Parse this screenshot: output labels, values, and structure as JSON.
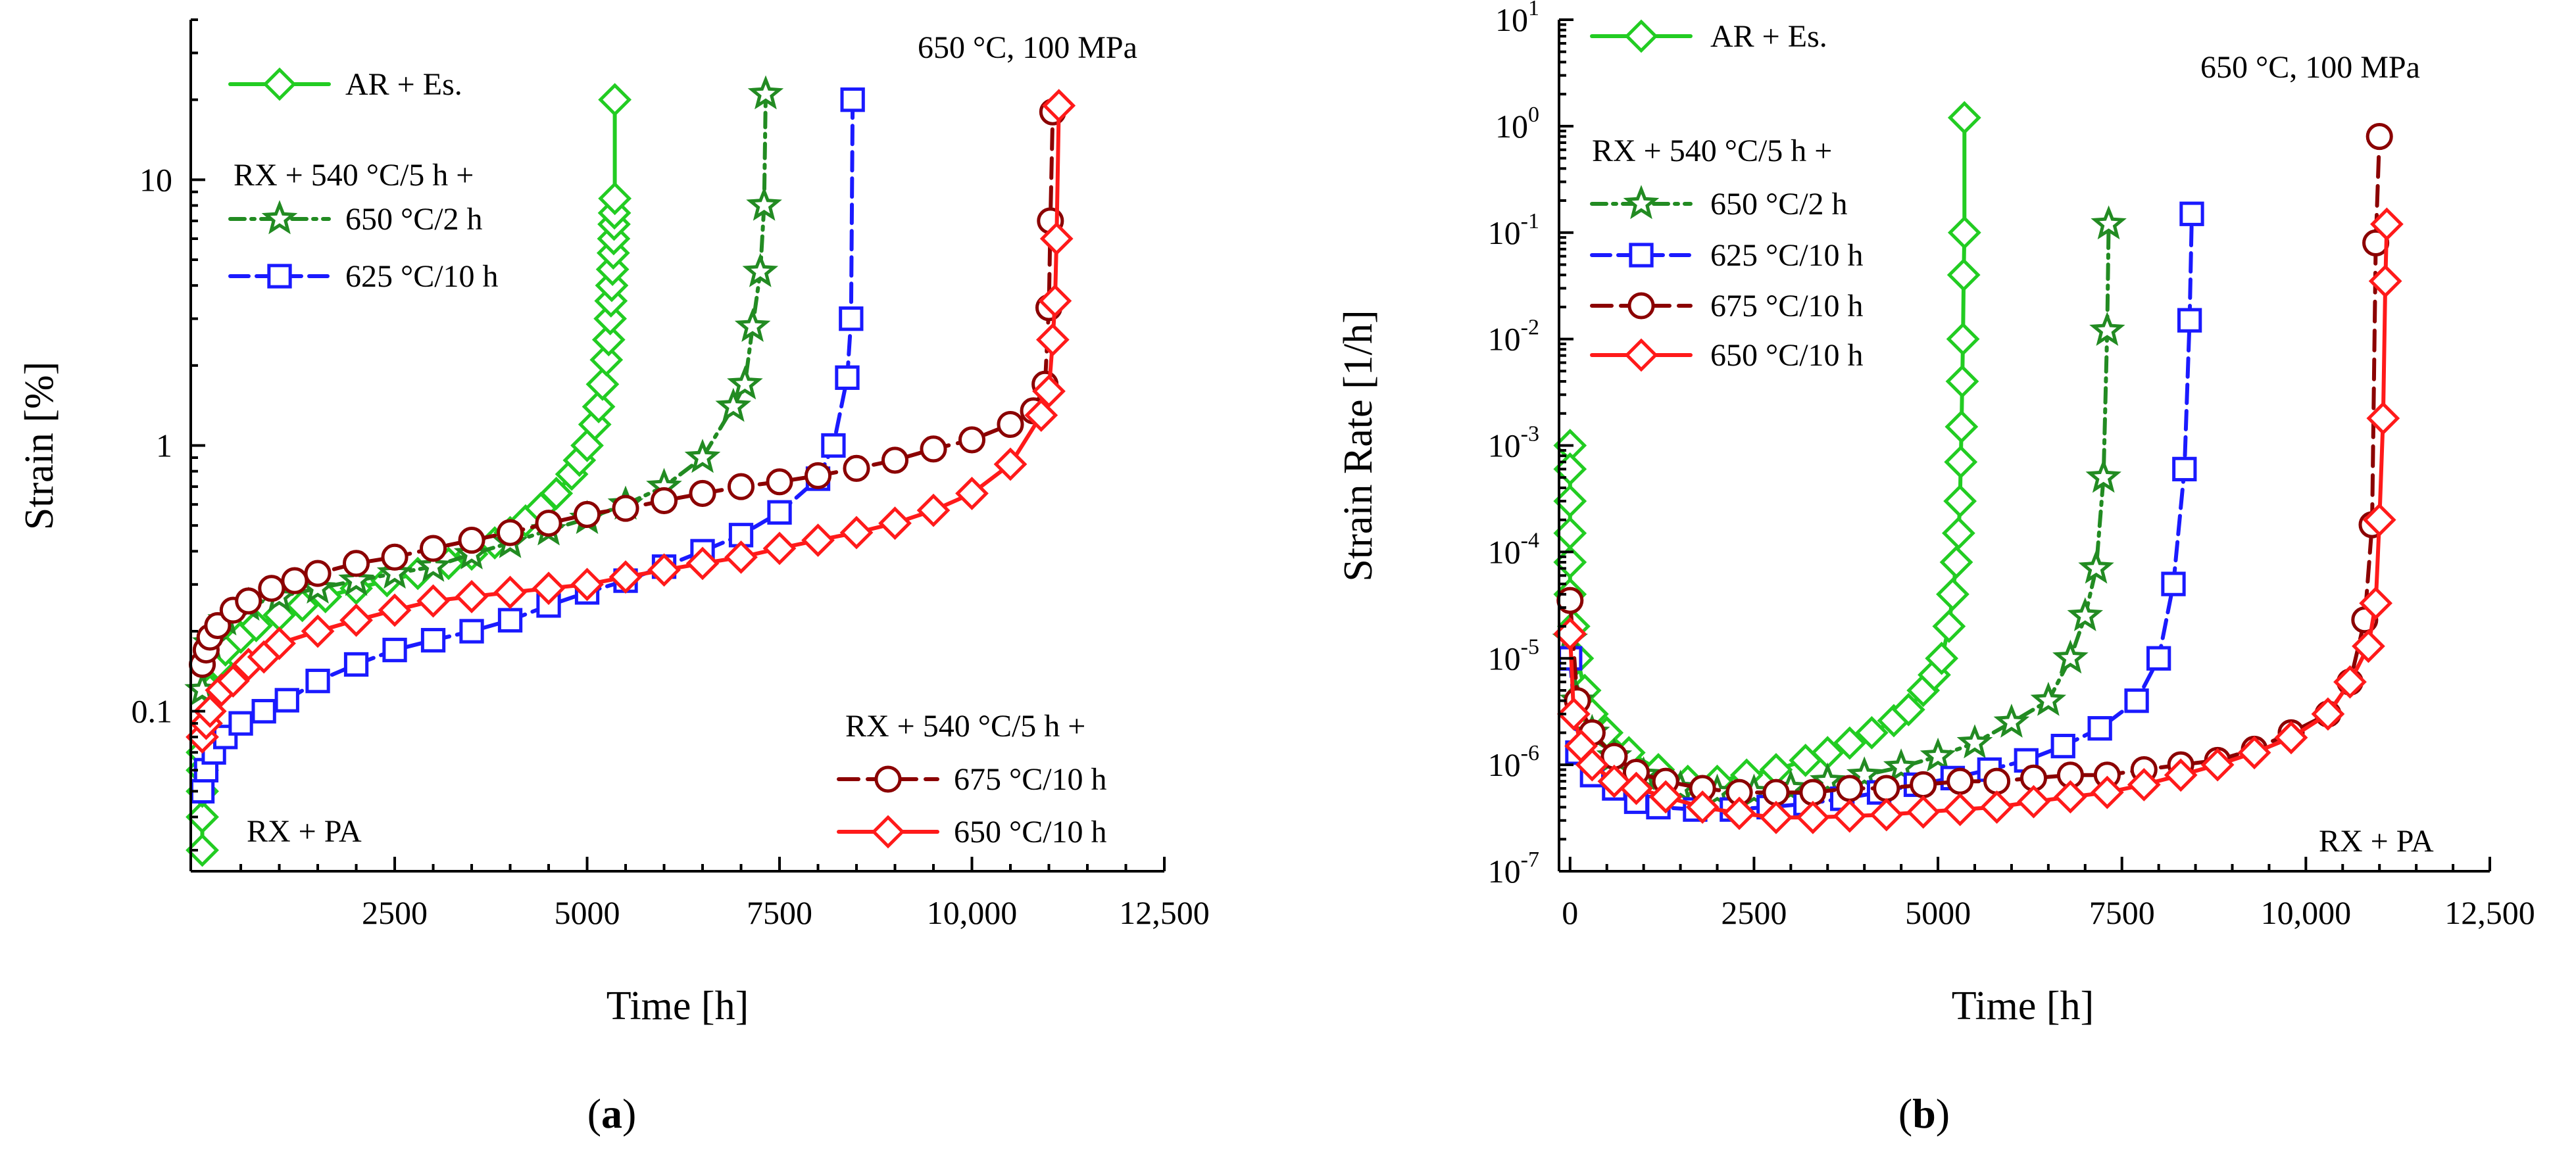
{
  "colors": {
    "ar": "#22cc22",
    "ar_marker": "#2ecc2e",
    "rx650_2": "#228b22",
    "rx625_10": "#1a1aff",
    "rx675_10": "#8b0000",
    "rx650_10": "#ff1a1a"
  },
  "chart_data": [
    {
      "type": "line",
      "panel_label_open": "(",
      "panel_label": "a",
      "panel_label_close": ")",
      "title": "",
      "xlabel": "Time [h]",
      "ylabel": "Strain [%]",
      "xlim": [
        0,
        12500
      ],
      "ylim": [
        0.025,
        40
      ],
      "yscale": "log",
      "x_ticks": [
        "2500",
        "5000",
        "7500",
        "10,000",
        "12,500"
      ],
      "x_tick_values": [
        2500,
        5000,
        7500,
        10000,
        12500
      ],
      "y_ticks": [
        "0.1",
        "1",
        "10"
      ],
      "y_tick_values": [
        0.1,
        1,
        10
      ],
      "annotations": {
        "condition": "650 °C, 100 MPa",
        "base": "RX + PA",
        "group1": "RX + 540 °C/5 h +",
        "group2": "RX + 540 °C/5 h +"
      },
      "legend": {
        "ar": "AR + Es.",
        "rx650_2": "650 °C/2 h",
        "rx625_10": "625 °C/10 h",
        "rx675_10": "675 °C/10 h",
        "rx650_10": "650 °C/10 h"
      },
      "series": [
        {
          "key": "ar",
          "name": "AR + Es.",
          "marker": "diamond",
          "dash": "",
          "x": [
            0,
            0,
            0,
            0,
            0,
            50,
            100,
            200,
            300,
            500,
            700,
            1000,
            1300,
            1600,
            2000,
            2400,
            2800,
            3200,
            3500,
            3800,
            4000,
            4200,
            4400,
            4600,
            4800,
            4900,
            5000,
            5100,
            5150,
            5200,
            5250,
            5280,
            5300,
            5310,
            5320,
            5330,
            5340,
            5345,
            5350,
            5355,
            5360,
            5360
          ],
          "y": [
            0.03,
            0.04,
            0.05,
            0.06,
            0.07,
            0.09,
            0.12,
            0.15,
            0.17,
            0.19,
            0.21,
            0.23,
            0.25,
            0.27,
            0.29,
            0.31,
            0.33,
            0.36,
            0.39,
            0.43,
            0.47,
            0.52,
            0.58,
            0.66,
            0.78,
            0.88,
            1.0,
            1.2,
            1.4,
            1.7,
            2.1,
            2.5,
            3.0,
            3.5,
            4.0,
            4.6,
            5.3,
            6.0,
            6.8,
            7.5,
            8.5,
            20
          ]
        },
        {
          "key": "rx650_2",
          "name": "650 °C/2 h",
          "marker": "star",
          "dash": "22,10,5,10",
          "x": [
            0,
            100,
            300,
            600,
            1000,
            1500,
            2000,
            2500,
            3000,
            3500,
            4000,
            4500,
            5000,
            5500,
            6000,
            6500,
            6900,
            7050,
            7150,
            7250,
            7300,
            7320
          ],
          "y": [
            0.12,
            0.18,
            0.22,
            0.25,
            0.27,
            0.29,
            0.31,
            0.33,
            0.35,
            0.39,
            0.43,
            0.48,
            0.53,
            0.6,
            0.7,
            0.9,
            1.4,
            1.7,
            2.8,
            4.5,
            8,
            21
          ]
        },
        {
          "key": "rx625_10",
          "name": "625 °C/10 h",
          "marker": "square",
          "dash": "28,12",
          "x": [
            0,
            50,
            150,
            300,
            500,
            800,
            1100,
            1500,
            2000,
            2500,
            3000,
            3500,
            4000,
            4500,
            5000,
            5500,
            6000,
            6500,
            7000,
            7500,
            8000,
            8200,
            8380,
            8430,
            8450
          ],
          "y": [
            0.05,
            0.06,
            0.07,
            0.08,
            0.09,
            0.1,
            0.11,
            0.13,
            0.15,
            0.17,
            0.185,
            0.2,
            0.22,
            0.25,
            0.28,
            0.31,
            0.35,
            0.4,
            0.46,
            0.56,
            0.75,
            1.0,
            1.8,
            3.0,
            20
          ]
        },
        {
          "key": "rx675_10",
          "name": "675 °C/10 h",
          "marker": "circle",
          "dash": "30,14",
          "x": [
            0,
            50,
            100,
            200,
            400,
            600,
            900,
            1200,
            1500,
            2000,
            2500,
            3000,
            3500,
            4000,
            4500,
            5000,
            5500,
            6000,
            6500,
            7000,
            7500,
            8000,
            8500,
            9000,
            9500,
            10000,
            10500,
            10800,
            10950,
            11000,
            11020,
            11050
          ],
          "y": [
            0.15,
            0.17,
            0.19,
            0.21,
            0.24,
            0.26,
            0.29,
            0.31,
            0.33,
            0.36,
            0.38,
            0.41,
            0.44,
            0.47,
            0.51,
            0.55,
            0.58,
            0.62,
            0.66,
            0.7,
            0.73,
            0.77,
            0.82,
            0.88,
            0.97,
            1.05,
            1.2,
            1.35,
            1.7,
            3.3,
            7,
            18
          ]
        },
        {
          "key": "rx650_10",
          "name": "650 °C/10 h",
          "marker": "diamond",
          "dash": "",
          "x": [
            0,
            50,
            100,
            250,
            400,
            600,
            800,
            1000,
            1500,
            2000,
            2500,
            3000,
            3500,
            4000,
            4500,
            5000,
            5500,
            6000,
            6500,
            7000,
            7500,
            8000,
            8500,
            9000,
            9500,
            10000,
            10500,
            10900,
            11000,
            11050,
            11080,
            11100,
            11130
          ],
          "y": [
            0.08,
            0.09,
            0.1,
            0.12,
            0.13,
            0.15,
            0.16,
            0.18,
            0.2,
            0.22,
            0.24,
            0.26,
            0.27,
            0.28,
            0.29,
            0.3,
            0.32,
            0.34,
            0.36,
            0.38,
            0.41,
            0.44,
            0.47,
            0.51,
            0.57,
            0.66,
            0.85,
            1.3,
            1.6,
            2.5,
            3.5,
            6,
            19
          ]
        }
      ]
    },
    {
      "type": "line",
      "panel_label_open": "(",
      "panel_label": "b",
      "panel_label_close": ")",
      "title": "",
      "xlabel": "Time [h]",
      "ylabel": "Strain Rate [1/h]",
      "xlim": [
        0,
        12500
      ],
      "ylim": [
        1e-07,
        10
      ],
      "yscale": "log",
      "x_ticks": [
        "0",
        "2500",
        "5000",
        "7500",
        "10,000",
        "12,500"
      ],
      "x_tick_values": [
        0,
        2500,
        5000,
        7500,
        10000,
        12500
      ],
      "y_ticks_base": [
        "10",
        "10",
        "10",
        "10",
        "10",
        "10",
        "10",
        "10",
        "10"
      ],
      "y_ticks_exp": [
        "-7",
        "-6",
        "-5",
        "-4",
        "-3",
        "-2",
        "-1",
        "0",
        "1"
      ],
      "y_tick_values": [
        1e-07,
        1e-06,
        1e-05,
        0.0001,
        0.001,
        0.01,
        0.1,
        1,
        10
      ],
      "annotations": {
        "condition": "650 °C, 100 MPa",
        "base": "RX + PA",
        "group1": "RX + 540 °C/5 h +"
      },
      "legend": {
        "ar": "AR + Es.",
        "rx650_2": "650 °C/2 h",
        "rx625_10": "625 °C/10 h",
        "rx675_10": "675 °C/10 h",
        "rx650_10": "650 °C/10 h"
      },
      "series": [
        {
          "key": "ar",
          "name": "AR + Es.",
          "marker": "diamond",
          "dash": "",
          "x": [
            0,
            0,
            0,
            0,
            0,
            0,
            50,
            100,
            200,
            300,
            500,
            800,
            1200,
            1600,
            2000,
            2400,
            2800,
            3200,
            3500,
            3800,
            4100,
            4400,
            4600,
            4800,
            4950,
            5050,
            5150,
            5200,
            5250,
            5280,
            5300,
            5310,
            5320,
            5330,
            5340,
            5350,
            5360,
            5360
          ],
          "y": [
            0.001,
            0.0006,
            0.0003,
            0.00015,
            8e-05,
            4e-05,
            2e-05,
            1e-05,
            5e-06,
            3e-06,
            2e-06,
            1.3e-06,
            9e-07,
            7e-07,
            7e-07,
            8e-07,
            9e-07,
            1.1e-06,
            1.3e-06,
            1.6e-06,
            2e-06,
            2.6e-06,
            3.3e-06,
            5e-06,
            7e-06,
            1e-05,
            2e-05,
            4e-05,
            8e-05,
            0.00015,
            0.0003,
            0.0007,
            0.0015,
            0.004,
            0.01,
            0.04,
            0.1,
            1.2
          ]
        },
        {
          "key": "rx650_2",
          "name": "650 °C/2 h",
          "marker": "star",
          "dash": "22,10,5,10",
          "x": [
            0,
            100,
            300,
            600,
            1000,
            1500,
            2000,
            2500,
            3000,
            3500,
            4000,
            4500,
            5000,
            5500,
            6000,
            6500,
            6800,
            7000,
            7150,
            7250,
            7300,
            7320
          ],
          "y": [
            1.5e-05,
            4e-06,
            2e-06,
            1.2e-06,
            8e-07,
            6e-07,
            5.5e-07,
            5.5e-07,
            6e-07,
            7e-07,
            8e-07,
            9.5e-07,
            1.2e-06,
            1.6e-06,
            2.5e-06,
            4e-06,
            1e-05,
            2.5e-05,
            7e-05,
            0.0005,
            0.012,
            0.12
          ]
        },
        {
          "key": "rx625_10",
          "name": "625 °C/10 h",
          "marker": "square",
          "dash": "28,12",
          "x": [
            0,
            100,
            300,
            600,
            900,
            1200,
            1700,
            2200,
            2700,
            3200,
            3700,
            4200,
            4700,
            5200,
            5700,
            6200,
            6700,
            7200,
            7700,
            8000,
            8200,
            8350,
            8420,
            8450
          ],
          "y": [
            1e-05,
            1.3e-06,
            8e-07,
            6e-07,
            4.5e-07,
            4e-07,
            3.8e-07,
            3.8e-07,
            4e-07,
            4.3e-07,
            4.8e-07,
            5.5e-07,
            6.5e-07,
            7.5e-07,
            9e-07,
            1.1e-06,
            1.5e-06,
            2.2e-06,
            4e-06,
            1e-05,
            5e-05,
            0.0006,
            0.015,
            0.15
          ]
        },
        {
          "key": "rx675_10",
          "name": "675 °C/10 h",
          "marker": "circle",
          "dash": "30,14",
          "x": [
            0,
            100,
            300,
            600,
            900,
            1300,
            1800,
            2300,
            2800,
            3300,
            3800,
            4300,
            4800,
            5300,
            5800,
            6300,
            6800,
            7300,
            7800,
            8300,
            8800,
            9300,
            9800,
            10300,
            10600,
            10800,
            10900,
            10950,
            11000
          ],
          "y": [
            3.5e-05,
            4e-06,
            2e-06,
            1.2e-06,
            8.5e-07,
            7e-07,
            6e-07,
            5.5e-07,
            5.5e-07,
            5.5e-07,
            6e-07,
            6e-07,
            6.5e-07,
            7e-07,
            7e-07,
            7.5e-07,
            8e-07,
            8e-07,
            9e-07,
            1e-06,
            1.1e-06,
            1.4e-06,
            2e-06,
            3e-06,
            6e-06,
            2.3e-05,
            0.00018,
            0.08,
            0.8
          ]
        },
        {
          "key": "rx650_10",
          "name": "650 °C/10 h",
          "marker": "diamond",
          "dash": "",
          "x": [
            0,
            50,
            150,
            300,
            600,
            900,
            1300,
            1800,
            2300,
            2800,
            3300,
            3800,
            4300,
            4800,
            5300,
            5800,
            6300,
            6800,
            7300,
            7800,
            8300,
            8800,
            9300,
            9800,
            10300,
            10600,
            10850,
            10950,
            11000,
            11050,
            11080,
            11100
          ],
          "y": [
            1.7e-05,
            3e-06,
            1.5e-06,
            1e-06,
            7e-07,
            6e-07,
            5e-07,
            4e-07,
            3.5e-07,
            3.2e-07,
            3.2e-07,
            3.3e-07,
            3.4e-07,
            3.6e-07,
            3.8e-07,
            4e-07,
            4.5e-07,
            5e-07,
            5.5e-07,
            6.5e-07,
            8e-07,
            1e-06,
            1.3e-06,
            1.8e-06,
            3e-06,
            6e-06,
            1.3e-05,
            3.3e-05,
            0.0002,
            0.0018,
            0.035,
            0.12
          ]
        }
      ]
    }
  ]
}
